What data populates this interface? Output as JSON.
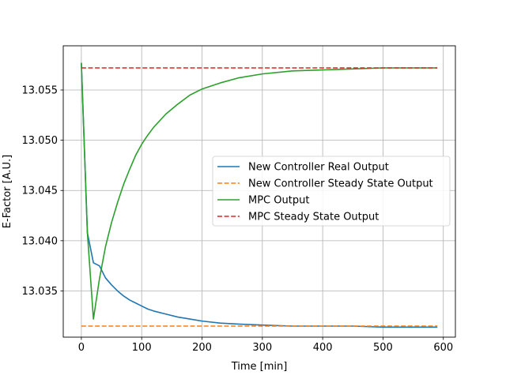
{
  "chart_data": {
    "type": "line",
    "title": "",
    "xlabel": "Time [min]",
    "ylabel": "E-Factor [A.U.]",
    "xlim": [
      -30,
      620
    ],
    "ylim": [
      13.0304,
      13.0594
    ],
    "xticks": [
      0,
      100,
      200,
      300,
      400,
      500,
      600
    ],
    "xtick_labels": [
      "0",
      "100",
      "200",
      "300",
      "400",
      "500",
      "600"
    ],
    "yticks": [
      13.035,
      13.04,
      13.045,
      13.05,
      13.055
    ],
    "ytick_labels": [
      "13.035",
      "13.040",
      "13.045",
      "13.050",
      "13.055"
    ],
    "grid": true,
    "legend_position": "center-right",
    "series": [
      {
        "name": "New Controller Real Output",
        "color": "#1f77b4",
        "dash": "solid",
        "x": [
          0,
          10,
          20,
          30,
          40,
          50,
          60,
          70,
          80,
          90,
          100,
          110,
          120,
          140,
          160,
          180,
          200,
          230,
          260,
          300,
          350,
          400,
          450,
          500,
          550,
          590
        ],
        "y": [
          13.0577,
          13.0408,
          13.0378,
          13.0375,
          13.0363,
          13.0356,
          13.035,
          13.0345,
          13.0341,
          13.0338,
          13.0335,
          13.0332,
          13.033,
          13.0327,
          13.0324,
          13.0322,
          13.032,
          13.0318,
          13.0317,
          13.0316,
          13.0315,
          13.0315,
          13.0315,
          13.0314,
          13.0314,
          13.0314
        ]
      },
      {
        "name": "New Controller Steady State Output",
        "color": "#ff7f0e",
        "dash": "dashed",
        "x": [
          0,
          590
        ],
        "y": [
          13.0315,
          13.0315
        ]
      },
      {
        "name": "MPC Output",
        "color": "#2ca02c",
        "dash": "solid",
        "x": [
          0,
          10,
          20,
          30,
          40,
          50,
          60,
          70,
          80,
          90,
          100,
          110,
          120,
          140,
          160,
          180,
          200,
          230,
          260,
          300,
          350,
          400,
          450,
          500,
          550,
          590
        ],
        "y": [
          13.0577,
          13.0408,
          13.0322,
          13.0362,
          13.0394,
          13.0418,
          13.0438,
          13.0456,
          13.0471,
          13.0485,
          13.0496,
          13.0505,
          13.0513,
          13.0526,
          13.0536,
          13.0545,
          13.0551,
          13.0557,
          13.0562,
          13.0566,
          13.0569,
          13.057,
          13.0571,
          13.0572,
          13.0572,
          13.0572
        ]
      },
      {
        "name": "MPC Steady State Output",
        "color": "#d62728",
        "dash": "dashed",
        "x": [
          0,
          590
        ],
        "y": [
          13.0572,
          13.0572
        ]
      }
    ]
  }
}
